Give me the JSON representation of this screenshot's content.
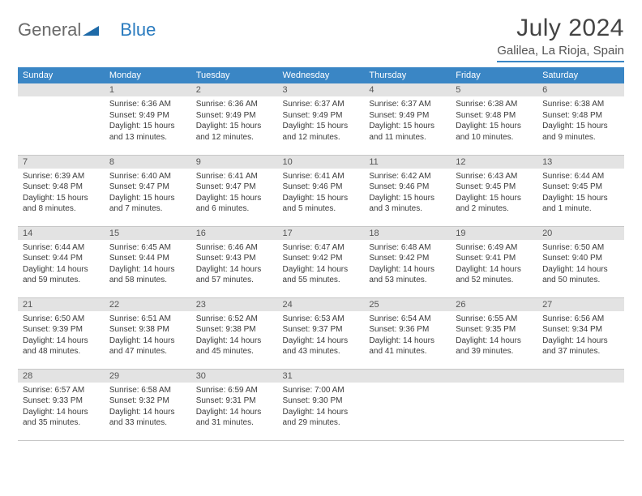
{
  "logo": {
    "text1": "General",
    "text2": "Blue"
  },
  "title": "July 2024",
  "subtitle": "Galilea, La Rioja, Spain",
  "columns": [
    "Sunday",
    "Monday",
    "Tuesday",
    "Wednesday",
    "Thursday",
    "Friday",
    "Saturday"
  ],
  "colors": {
    "header_bg": "#3a86c5",
    "header_fg": "#ffffff",
    "daynum_bg": "#e3e3e3",
    "daynum_fg": "#555555",
    "text": "#3b3b3b",
    "rule": "#c7c7c7",
    "logo_general": "#6a6a6a",
    "logo_blue": "#2a7bbf",
    "triangle": "#1e6aa8"
  },
  "weeks": [
    [
      {
        "n": "",
        "lines": []
      },
      {
        "n": "1",
        "lines": [
          "Sunrise: 6:36 AM",
          "Sunset: 9:49 PM",
          "Daylight: 15 hours",
          "and 13 minutes."
        ]
      },
      {
        "n": "2",
        "lines": [
          "Sunrise: 6:36 AM",
          "Sunset: 9:49 PM",
          "Daylight: 15 hours",
          "and 12 minutes."
        ]
      },
      {
        "n": "3",
        "lines": [
          "Sunrise: 6:37 AM",
          "Sunset: 9:49 PM",
          "Daylight: 15 hours",
          "and 12 minutes."
        ]
      },
      {
        "n": "4",
        "lines": [
          "Sunrise: 6:37 AM",
          "Sunset: 9:49 PM",
          "Daylight: 15 hours",
          "and 11 minutes."
        ]
      },
      {
        "n": "5",
        "lines": [
          "Sunrise: 6:38 AM",
          "Sunset: 9:48 PM",
          "Daylight: 15 hours",
          "and 10 minutes."
        ]
      },
      {
        "n": "6",
        "lines": [
          "Sunrise: 6:38 AM",
          "Sunset: 9:48 PM",
          "Daylight: 15 hours",
          "and 9 minutes."
        ]
      }
    ],
    [
      {
        "n": "7",
        "lines": [
          "Sunrise: 6:39 AM",
          "Sunset: 9:48 PM",
          "Daylight: 15 hours",
          "and 8 minutes."
        ]
      },
      {
        "n": "8",
        "lines": [
          "Sunrise: 6:40 AM",
          "Sunset: 9:47 PM",
          "Daylight: 15 hours",
          "and 7 minutes."
        ]
      },
      {
        "n": "9",
        "lines": [
          "Sunrise: 6:41 AM",
          "Sunset: 9:47 PM",
          "Daylight: 15 hours",
          "and 6 minutes."
        ]
      },
      {
        "n": "10",
        "lines": [
          "Sunrise: 6:41 AM",
          "Sunset: 9:46 PM",
          "Daylight: 15 hours",
          "and 5 minutes."
        ]
      },
      {
        "n": "11",
        "lines": [
          "Sunrise: 6:42 AM",
          "Sunset: 9:46 PM",
          "Daylight: 15 hours",
          "and 3 minutes."
        ]
      },
      {
        "n": "12",
        "lines": [
          "Sunrise: 6:43 AM",
          "Sunset: 9:45 PM",
          "Daylight: 15 hours",
          "and 2 minutes."
        ]
      },
      {
        "n": "13",
        "lines": [
          "Sunrise: 6:44 AM",
          "Sunset: 9:45 PM",
          "Daylight: 15 hours",
          "and 1 minute."
        ]
      }
    ],
    [
      {
        "n": "14",
        "lines": [
          "Sunrise: 6:44 AM",
          "Sunset: 9:44 PM",
          "Daylight: 14 hours",
          "and 59 minutes."
        ]
      },
      {
        "n": "15",
        "lines": [
          "Sunrise: 6:45 AM",
          "Sunset: 9:44 PM",
          "Daylight: 14 hours",
          "and 58 minutes."
        ]
      },
      {
        "n": "16",
        "lines": [
          "Sunrise: 6:46 AM",
          "Sunset: 9:43 PM",
          "Daylight: 14 hours",
          "and 57 minutes."
        ]
      },
      {
        "n": "17",
        "lines": [
          "Sunrise: 6:47 AM",
          "Sunset: 9:42 PM",
          "Daylight: 14 hours",
          "and 55 minutes."
        ]
      },
      {
        "n": "18",
        "lines": [
          "Sunrise: 6:48 AM",
          "Sunset: 9:42 PM",
          "Daylight: 14 hours",
          "and 53 minutes."
        ]
      },
      {
        "n": "19",
        "lines": [
          "Sunrise: 6:49 AM",
          "Sunset: 9:41 PM",
          "Daylight: 14 hours",
          "and 52 minutes."
        ]
      },
      {
        "n": "20",
        "lines": [
          "Sunrise: 6:50 AM",
          "Sunset: 9:40 PM",
          "Daylight: 14 hours",
          "and 50 minutes."
        ]
      }
    ],
    [
      {
        "n": "21",
        "lines": [
          "Sunrise: 6:50 AM",
          "Sunset: 9:39 PM",
          "Daylight: 14 hours",
          "and 48 minutes."
        ]
      },
      {
        "n": "22",
        "lines": [
          "Sunrise: 6:51 AM",
          "Sunset: 9:38 PM",
          "Daylight: 14 hours",
          "and 47 minutes."
        ]
      },
      {
        "n": "23",
        "lines": [
          "Sunrise: 6:52 AM",
          "Sunset: 9:38 PM",
          "Daylight: 14 hours",
          "and 45 minutes."
        ]
      },
      {
        "n": "24",
        "lines": [
          "Sunrise: 6:53 AM",
          "Sunset: 9:37 PM",
          "Daylight: 14 hours",
          "and 43 minutes."
        ]
      },
      {
        "n": "25",
        "lines": [
          "Sunrise: 6:54 AM",
          "Sunset: 9:36 PM",
          "Daylight: 14 hours",
          "and 41 minutes."
        ]
      },
      {
        "n": "26",
        "lines": [
          "Sunrise: 6:55 AM",
          "Sunset: 9:35 PM",
          "Daylight: 14 hours",
          "and 39 minutes."
        ]
      },
      {
        "n": "27",
        "lines": [
          "Sunrise: 6:56 AM",
          "Sunset: 9:34 PM",
          "Daylight: 14 hours",
          "and 37 minutes."
        ]
      }
    ],
    [
      {
        "n": "28",
        "lines": [
          "Sunrise: 6:57 AM",
          "Sunset: 9:33 PM",
          "Daylight: 14 hours",
          "and 35 minutes."
        ]
      },
      {
        "n": "29",
        "lines": [
          "Sunrise: 6:58 AM",
          "Sunset: 9:32 PM",
          "Daylight: 14 hours",
          "and 33 minutes."
        ]
      },
      {
        "n": "30",
        "lines": [
          "Sunrise: 6:59 AM",
          "Sunset: 9:31 PM",
          "Daylight: 14 hours",
          "and 31 minutes."
        ]
      },
      {
        "n": "31",
        "lines": [
          "Sunrise: 7:00 AM",
          "Sunset: 9:30 PM",
          "Daylight: 14 hours",
          "and 29 minutes."
        ]
      },
      {
        "n": "",
        "lines": []
      },
      {
        "n": "",
        "lines": []
      },
      {
        "n": "",
        "lines": []
      }
    ]
  ]
}
